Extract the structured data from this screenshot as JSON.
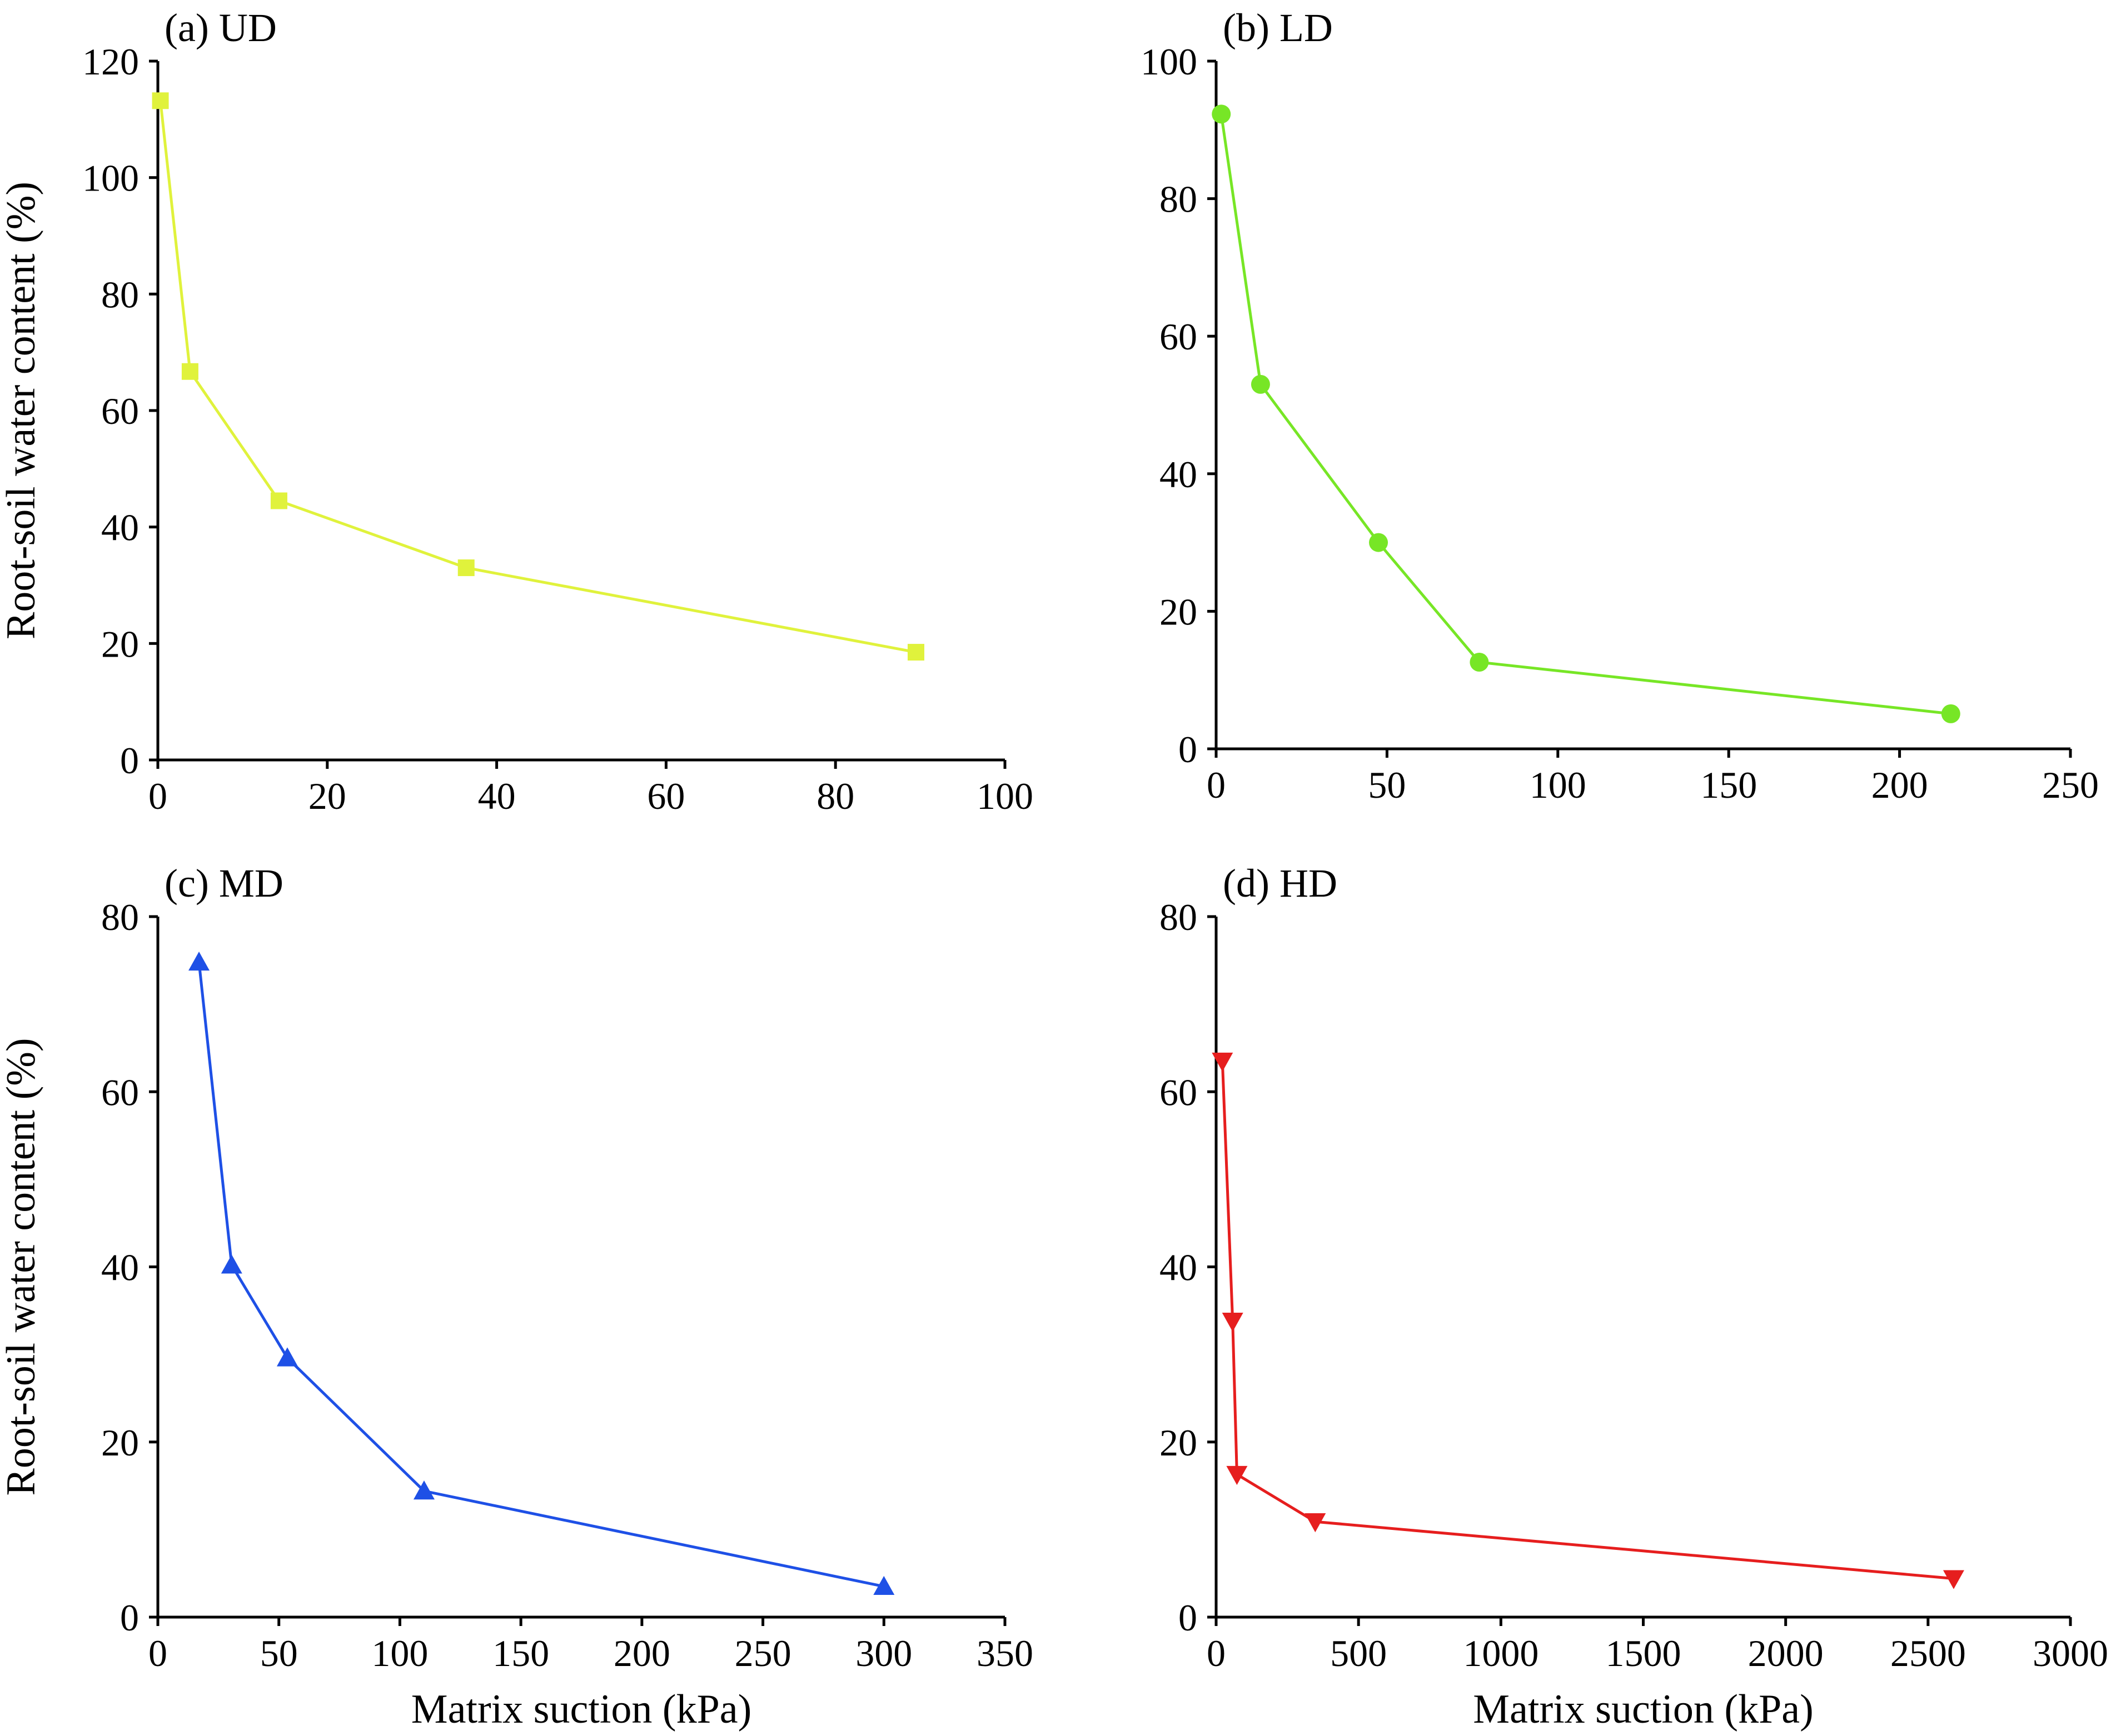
{
  "chart_data": [
    {
      "type": "line",
      "title": "(a) UD",
      "xlabel": "",
      "ylabel": "Root-soil water content (%)",
      "xlim": [
        0,
        100
      ],
      "ylim": [
        0,
        120
      ],
      "xticks": [
        0,
        20,
        40,
        60,
        80,
        100
      ],
      "yticks": [
        0,
        20,
        40,
        60,
        80,
        100,
        120
      ],
      "grid": false,
      "series": [
        {
          "color": "#e0f23c",
          "marker": "square",
          "x": [
            0.3,
            3.8,
            14.3,
            36.4,
            89.5
          ],
          "y": [
            113.2,
            66.7,
            44.5,
            33.0,
            18.5
          ]
        }
      ]
    },
    {
      "type": "line",
      "title": "(b) LD",
      "xlabel": "",
      "ylabel": "",
      "xlim": [
        0,
        250
      ],
      "ylim": [
        0,
        100
      ],
      "xticks": [
        0,
        50,
        100,
        150,
        200,
        250
      ],
      "yticks": [
        0,
        20,
        40,
        60,
        80,
        100
      ],
      "grid": false,
      "series": [
        {
          "color": "#77e626",
          "marker": "circle",
          "x": [
            1.5,
            13.0,
            47.5,
            77.0,
            215.0
          ],
          "y": [
            92.3,
            53.0,
            30.0,
            12.6,
            5.1
          ]
        }
      ]
    },
    {
      "type": "line",
      "title": "(c) MD",
      "xlabel": "Matrix suction (kPa)",
      "ylabel": "Root-soil water content (%)",
      "xlim": [
        0,
        350
      ],
      "ylim": [
        0,
        80
      ],
      "xticks": [
        0,
        50,
        100,
        150,
        200,
        250,
        300,
        350
      ],
      "yticks": [
        0,
        20,
        40,
        60,
        80
      ],
      "grid": false,
      "series": [
        {
          "color": "#1e50e6",
          "marker": "triangle-up",
          "x": [
            17.0,
            30.5,
            53.5,
            110.0,
            300.0
          ],
          "y": [
            74.8,
            40.2,
            29.6,
            14.4,
            3.5
          ]
        }
      ]
    },
    {
      "type": "line",
      "title": "(d) HD",
      "xlabel": "Matrix suction (kPa)",
      "ylabel": "",
      "xlim": [
        0,
        3000
      ],
      "ylim": [
        0,
        80
      ],
      "xticks": [
        0,
        500,
        1000,
        1500,
        2000,
        2500,
        3000
      ],
      "yticks": [
        0,
        20,
        40,
        60,
        80
      ],
      "grid": false,
      "series": [
        {
          "color": "#e61e1e",
          "marker": "triangle-down",
          "x": [
            22.0,
            58.0,
            73.0,
            348.0,
            2590.0
          ],
          "y": [
            63.5,
            33.8,
            16.3,
            10.9,
            4.4
          ]
        }
      ]
    }
  ]
}
